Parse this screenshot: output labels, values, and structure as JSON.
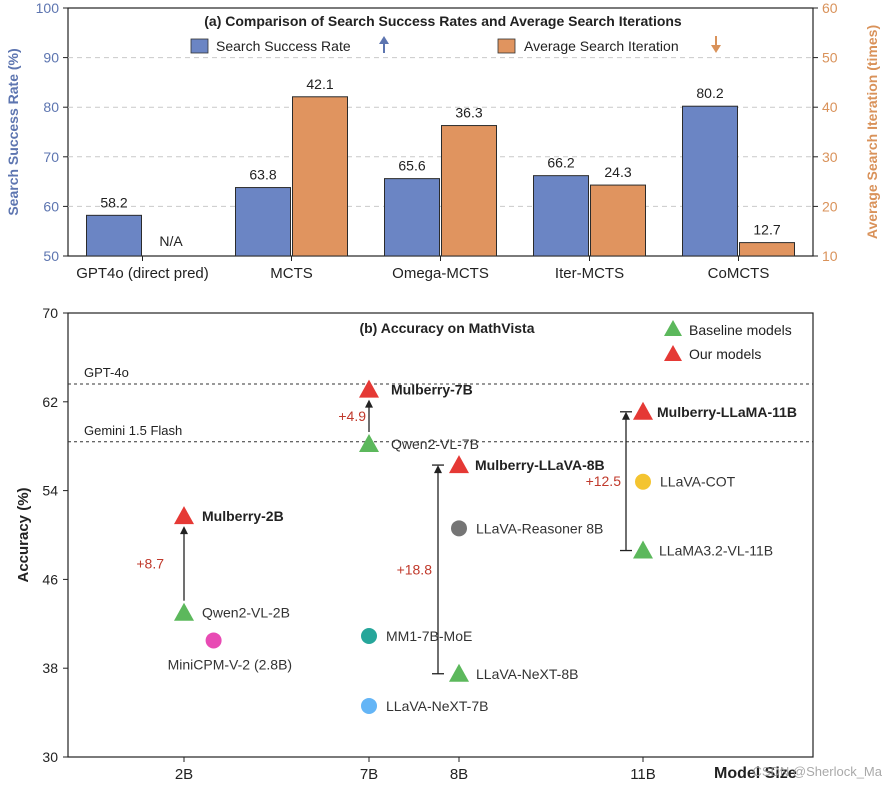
{
  "watermark": "CSDN @Sherlock_Ma",
  "colors": {
    "success": "#6B85C4",
    "iteration": "#E0945F",
    "success_axis": "#5D75B0",
    "iteration_axis": "#D9925A",
    "baseline": "#5CB85C",
    "ours": "#E53935",
    "delta": "#C0392B"
  },
  "chart_data": [
    {
      "type": "bar",
      "title": "(a) Comparison of Search Success Rates and Average Search Iterations",
      "categories": [
        "GPT4o (direct pred)",
        "MCTS",
        "Omega-MCTS",
        "Iter-MCTS",
        "CoMCTS"
      ],
      "series": [
        {
          "name": "Search Success Rate",
          "legend_arrow": "up",
          "axis": "left",
          "values": [
            58.2,
            63.8,
            65.6,
            66.2,
            80.2
          ],
          "labels": [
            "58.2",
            "63.8",
            "65.6",
            "66.2",
            "80.2"
          ]
        },
        {
          "name": "Average Search Iteration",
          "legend_arrow": "down",
          "axis": "right",
          "values": [
            null,
            42.1,
            36.3,
            24.3,
            12.7
          ],
          "labels": [
            "N/A",
            "42.1",
            "36.3",
            "24.3",
            "12.7"
          ]
        }
      ],
      "ylabel": "Search Success Rate (%)",
      "ylim": [
        50,
        100
      ],
      "yticks": [
        "50",
        "60",
        "70",
        "80",
        "90",
        "100"
      ],
      "y2label": "Average Search Iteration (times)",
      "y2lim": [
        10,
        60
      ],
      "y2ticks": [
        "10",
        "20",
        "30",
        "40",
        "50",
        "60"
      ],
      "grid": "horizontal dashed",
      "legend_position": "top-center"
    },
    {
      "type": "scatter",
      "title": "(b) Accuracy on MathVista",
      "xlabel": "Model Size",
      "ylabel": "Accuracy (%)",
      "ylim": [
        30,
        70
      ],
      "yticks": [
        "30",
        "38",
        "46",
        "54",
        "62",
        "70"
      ],
      "xticks": [
        {
          "label": "2B",
          "value": 2
        },
        {
          "label": "7B",
          "value": 7
        },
        {
          "label": "8B",
          "value": 8
        },
        {
          "label": "11B",
          "value": 11
        }
      ],
      "legend": [
        {
          "name": "Baseline models",
          "color": "#5CB85C"
        },
        {
          "name": "Our models",
          "color": "#E53935"
        }
      ],
      "legend_position": "top-right",
      "reference_lines": [
        {
          "label": "GPT-4o",
          "y": 63.6
        },
        {
          "label": "Gemini 1.5 Flash",
          "y": 58.4
        }
      ],
      "points": [
        {
          "label": "Mulberry-2B",
          "x": 2,
          "y": 51.7,
          "marker": "triangle",
          "color": "#E53935",
          "bold": true
        },
        {
          "label": "Qwen2-VL-2B",
          "x": 2,
          "y": 43.0,
          "marker": "triangle",
          "color": "#5CB85C",
          "bold": false
        },
        {
          "label": "MiniCPM-V-2 (2.8B)",
          "x": 2.8,
          "y": 40.5,
          "marker": "circle",
          "color": "#E84BB4",
          "bold": false
        },
        {
          "label": "Mulberry-7B",
          "x": 7,
          "y": 63.1,
          "marker": "triangle",
          "color": "#E53935",
          "bold": true
        },
        {
          "label": "Qwen2-VL-7B",
          "x": 7,
          "y": 58.2,
          "marker": "triangle",
          "color": "#5CB85C",
          "bold": false
        },
        {
          "label": "MM1-7B-MoE",
          "x": 7,
          "y": 40.9,
          "marker": "circle",
          "color": "#26A69A",
          "bold": false
        },
        {
          "label": "LLaVA-NeXT-7B",
          "x": 7,
          "y": 34.6,
          "marker": "circle",
          "color": "#64B5F6",
          "bold": false
        },
        {
          "label": "Mulberry-LLaVA-8B",
          "x": 8,
          "y": 56.3,
          "marker": "triangle",
          "color": "#E53935",
          "bold": true
        },
        {
          "label": "LLaVA-Reasoner 8B",
          "x": 8,
          "y": 50.6,
          "marker": "circle",
          "color": "#757575",
          "bold": false
        },
        {
          "label": "LLaVA-NeXT-8B",
          "x": 8,
          "y": 37.5,
          "marker": "triangle",
          "color": "#5CB85C",
          "bold": false
        },
        {
          "label": "Mulberry-LLaMA-11B",
          "x": 11,
          "y": 61.1,
          "marker": "triangle",
          "color": "#E53935",
          "bold": true
        },
        {
          "label": "LLaVA-COT",
          "x": 11,
          "y": 54.8,
          "marker": "circle",
          "color": "#F4C430",
          "bold": false
        },
        {
          "label": "LLaMA3.2-VL-11B",
          "x": 11,
          "y": 48.6,
          "marker": "triangle",
          "color": "#5CB85C",
          "bold": false
        }
      ],
      "improvements": [
        {
          "label": "+8.7",
          "x": 2,
          "from": 43.0,
          "to": 51.7
        },
        {
          "label": "+4.9",
          "x": 7,
          "from": 58.2,
          "to": 63.1
        },
        {
          "label": "+18.8",
          "x": 8,
          "from": 37.5,
          "to": 56.3
        },
        {
          "label": "+12.5",
          "x": 11,
          "from": 48.6,
          "to": 61.1
        }
      ]
    }
  ]
}
